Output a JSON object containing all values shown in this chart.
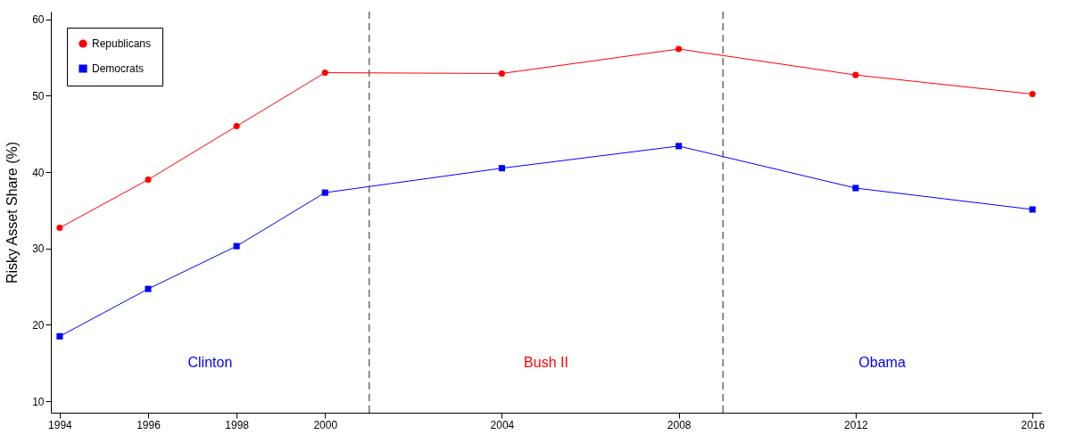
{
  "chart_data": {
    "type": "line",
    "ylabel": "Risky Asset Share (%)",
    "x": [
      1994,
      1996,
      1998,
      2000,
      2004,
      2008,
      2012,
      2016
    ],
    "series": [
      {
        "name": "Republicans",
        "color": "#ff0000",
        "marker": "circle",
        "values": [
          32.7,
          39.0,
          46.0,
          53.0,
          52.9,
          56.1,
          52.7,
          50.2
        ]
      },
      {
        "name": "Democrats",
        "color": "#0000ff",
        "marker": "square",
        "values": [
          18.5,
          24.7,
          30.3,
          37.3,
          40.5,
          43.4,
          37.9,
          35.1
        ]
      }
    ],
    "xlim": [
      1993.8,
      2016.2
    ],
    "xticks": [
      1994,
      1996,
      1998,
      2000,
      2004,
      2008,
      2012,
      2016
    ],
    "ylim": [
      8.5,
      61
    ],
    "yticks": [
      10,
      20,
      30,
      40,
      50,
      60
    ],
    "ref_lines": [
      {
        "axis": "x",
        "value": 2001,
        "color": "#555555",
        "line_style": "dashed"
      },
      {
        "axis": "x",
        "value": 2009,
        "color": "#555555",
        "line_style": "dashed"
      }
    ],
    "annotations": [
      "Clinton",
      "Bush II",
      "Obama"
    ],
    "grid": false,
    "legend": "top left"
  }
}
